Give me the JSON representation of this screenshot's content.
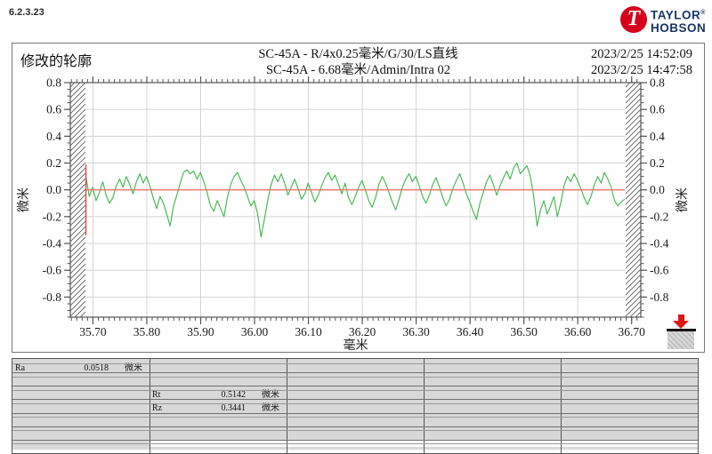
{
  "app": {
    "version": "6.2.3.23"
  },
  "logo": {
    "initial": "T",
    "line1": "TAYLOR",
    "line2": "HOBSON",
    "reg": "®",
    "red": "#d6001c",
    "navy": "#1a3668"
  },
  "header": {
    "title": "修改的轮廓",
    "center_line1": "SC-45A - R/4x0.25毫米/G/30/LS直线",
    "center_line2": "SC-45A - 6.68毫米/Admin/Intra 02",
    "timestamp1": "2023/2/25 14:52:09",
    "timestamp2": "2023/2/25 14:47:58"
  },
  "chart_data": {
    "type": "line",
    "title_line1": "SC-45A - R/4x0.25毫米/G/30/LS直线",
    "title_line2": "SC-45A - 6.68毫米/Admin/Intra 02",
    "xlabel": "毫米",
    "ylabel_left": "微米",
    "ylabel_right": "微米",
    "xlim": [
      35.658,
      36.717
    ],
    "ylim": [
      -0.95,
      0.8
    ],
    "x_ticks": [
      35.7,
      35.8,
      35.9,
      36.0,
      36.1,
      36.2,
      36.3,
      36.4,
      36.5,
      36.6,
      36.7
    ],
    "x_minor_step": 0.01,
    "y_ticks": [
      0.8,
      0.6,
      0.4,
      0.2,
      0.0,
      -0.2,
      -0.4,
      -0.6,
      -0.8
    ],
    "y_minor_step": 0.05,
    "grid": true,
    "legend": "none",
    "colors": {
      "profile": "#3bb54a",
      "grid": "#d4d4d4",
      "frame": "#555555",
      "hatch": "#707070",
      "mean_line": "#f0756b",
      "start_marker": "#e74c41"
    },
    "series": [
      {
        "name": "修改的轮廓",
        "unit": "微米",
        "x_start": 35.687,
        "x_step": 0.00625,
        "values": [
          0.1,
          -0.05,
          0.02,
          -0.08,
          -0.02,
          0.06,
          -0.04,
          -0.1,
          -0.06,
          0.03,
          0.08,
          0.02,
          0.1,
          0.04,
          -0.03,
          0.06,
          0.12,
          0.05,
          0.1,
          0.03,
          -0.06,
          -0.14,
          -0.05,
          -0.1,
          -0.18,
          -0.27,
          -0.12,
          -0.04,
          0.05,
          0.13,
          0.15,
          0.12,
          0.14,
          0.08,
          0.13,
          0.06,
          -0.02,
          -0.12,
          -0.16,
          -0.08,
          -0.14,
          -0.2,
          -0.06,
          0.04,
          0.1,
          0.13,
          0.07,
          0.02,
          -0.05,
          -0.12,
          -0.08,
          -0.18,
          -0.35,
          -0.22,
          -0.08,
          0.04,
          0.11,
          0.06,
          0.12,
          0.05,
          -0.04,
          0.02,
          0.08,
          0.01,
          -0.07,
          -0.03,
          0.05,
          -0.02,
          -0.09,
          -0.04,
          0.03,
          0.09,
          0.13,
          0.07,
          0.11,
          0.04,
          -0.03,
          0.05,
          -0.06,
          -0.11,
          -0.05,
          0.02,
          0.07,
          0.0,
          -0.08,
          -0.13,
          -0.06,
          0.04,
          0.1,
          0.05,
          -0.02,
          -0.09,
          -0.15,
          -0.07,
          0.02,
          0.08,
          0.12,
          0.06,
          0.1,
          0.03,
          -0.05,
          -0.1,
          -0.04,
          0.04,
          0.09,
          0.02,
          -0.06,
          -0.12,
          -0.07,
          0.01,
          0.07,
          0.12,
          0.05,
          -0.03,
          -0.09,
          -0.16,
          -0.22,
          -0.1,
          -0.02,
          0.06,
          0.11,
          0.04,
          -0.04,
          0.03,
          0.09,
          0.14,
          0.08,
          0.16,
          0.2,
          0.12,
          0.15,
          0.18,
          0.1,
          -0.05,
          -0.27,
          -0.15,
          -0.08,
          -0.18,
          -0.12,
          -0.05,
          -0.2,
          -0.1,
          0.03,
          0.1,
          0.06,
          0.12,
          0.07,
          0.01,
          -0.06,
          -0.11,
          -0.05,
          0.04,
          0.1,
          0.05,
          0.13,
          0.08,
          0.02,
          -0.08,
          -0.12,
          -0.09,
          -0.07
        ]
      }
    ],
    "mean_line": {
      "y": 0.0
    },
    "start_marker": {
      "x": 35.687,
      "y_from": 0.19,
      "y_to": -0.34
    }
  },
  "results": {
    "columns": 5,
    "row_units": 7,
    "parameters": [
      {
        "name": "Ra",
        "value": "0.0518",
        "unit": "微米",
        "col": 0,
        "row": 0
      },
      {
        "name": "Rt",
        "value": "0.5142",
        "unit": "微米",
        "col": 1,
        "row": 2
      },
      {
        "name": "Rz",
        "value": "0.3441",
        "unit": "微米",
        "col": 1,
        "row": 3
      }
    ]
  }
}
